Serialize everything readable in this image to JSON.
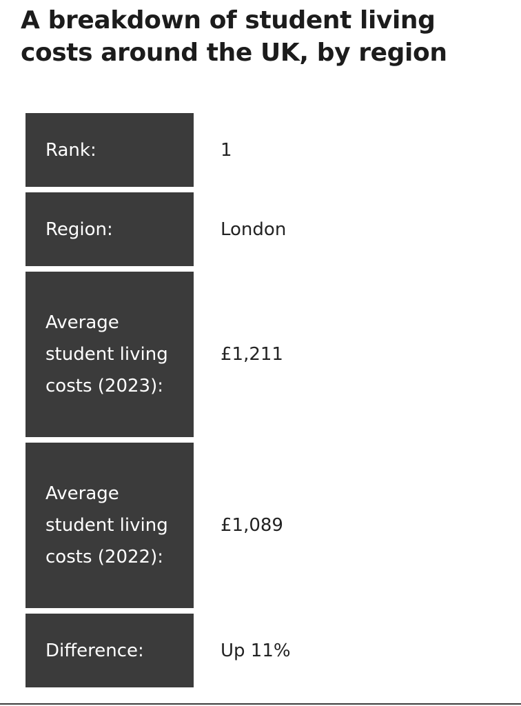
{
  "title": "A breakdown of student living costs around the UK, by region",
  "rows": [
    {
      "label": "Rank:",
      "value": "1"
    },
    {
      "label": "Region:",
      "value": "London"
    },
    {
      "label": "Average student living costs (2023):",
      "value": "£1,211"
    },
    {
      "label": "Average student living costs (2022):",
      "value": "£1,089"
    },
    {
      "label": "Difference:",
      "value": "Up 11%"
    }
  ],
  "colors": {
    "label_background": "#3b3b3b",
    "label_text": "#ffffff",
    "value_text": "#222222",
    "title_text": "#1c1c1c"
  }
}
